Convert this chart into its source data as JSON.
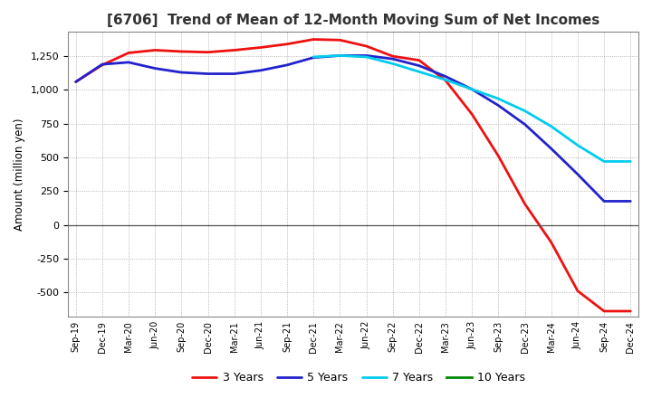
{
  "title": "[6706]  Trend of Mean of 12-Month Moving Sum of Net Incomes",
  "ylabel": "Amount (million yen)",
  "background_color": "#ffffff",
  "plot_background_color": "#ffffff",
  "grid_color": "#999999",
  "x_labels": [
    "Sep-19",
    "Dec-19",
    "Mar-20",
    "Jun-20",
    "Sep-20",
    "Dec-20",
    "Mar-21",
    "Jun-21",
    "Sep-21",
    "Dec-21",
    "Mar-22",
    "Jun-22",
    "Sep-22",
    "Dec-22",
    "Mar-23",
    "Jun-23",
    "Sep-23",
    "Dec-23",
    "Mar-24",
    "Jun-24",
    "Sep-24",
    "Dec-24"
  ],
  "ylim": [
    -680,
    1430
  ],
  "yticks": [
    -500,
    -250,
    0,
    250,
    500,
    750,
    1000,
    1250
  ],
  "series": {
    "3 Years": {
      "color": "#ee1111",
      "data_x": [
        0,
        1,
        2,
        3,
        4,
        5,
        6,
        7,
        8,
        9,
        10,
        11,
        12,
        13,
        14,
        15,
        16,
        17,
        18,
        19,
        20,
        21
      ],
      "data_y": [
        1060,
        1185,
        1275,
        1295,
        1285,
        1280,
        1295,
        1315,
        1340,
        1375,
        1370,
        1325,
        1250,
        1220,
        1070,
        820,
        510,
        155,
        -130,
        -490,
        -640,
        -640
      ]
    },
    "5 Years": {
      "color": "#2222cc",
      "data_x": [
        0,
        1,
        2,
        3,
        4,
        5,
        6,
        7,
        8,
        9,
        10,
        11,
        12,
        13,
        14,
        15,
        16,
        17,
        18,
        19,
        20,
        21
      ],
      "data_y": [
        1060,
        1190,
        1205,
        1160,
        1130,
        1120,
        1120,
        1145,
        1185,
        1240,
        1255,
        1255,
        1230,
        1180,
        1100,
        1005,
        885,
        745,
        565,
        375,
        175,
        175
      ]
    },
    "7 Years": {
      "color": "#00ccee",
      "data_x": [
        9,
        10,
        11,
        12,
        13,
        14,
        15,
        16,
        17,
        18,
        19,
        20,
        21
      ],
      "data_y": [
        1245,
        1255,
        1245,
        1195,
        1135,
        1075,
        1005,
        935,
        845,
        730,
        590,
        470,
        470
      ]
    },
    "10 Years": {
      "color": "#008800",
      "data_x": [],
      "data_y": []
    }
  },
  "legend_entries": [
    "3 Years",
    "5 Years",
    "7 Years",
    "10 Years"
  ],
  "linewidth": 2.0
}
